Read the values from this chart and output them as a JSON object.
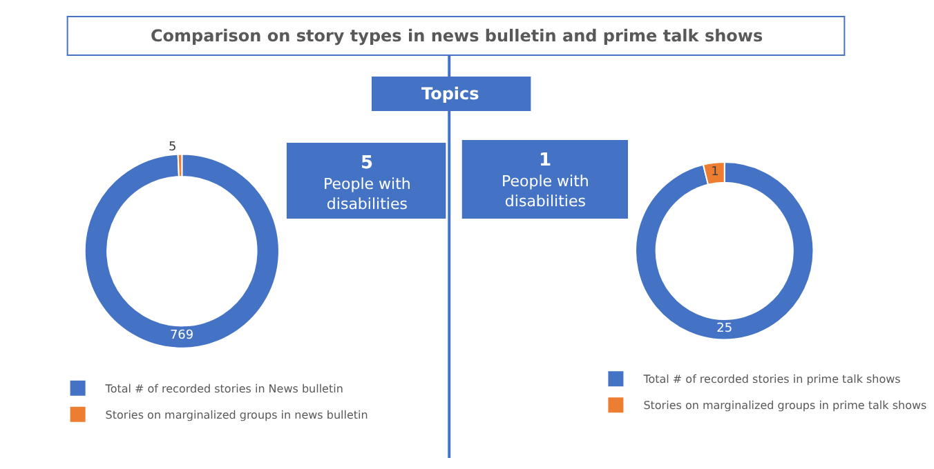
{
  "chart_data": [
    {
      "type": "other",
      "title": "Comparison on story types in news bulletin and prime talk shows",
      "annotations": [
        "Topics",
        "5",
        "People with disabilities",
        "1",
        "People with disabilities"
      ]
    },
    {
      "type": "donut",
      "categories": [
        "Total # of recorded stories in News bulletin",
        "Stories on marginalized groups in news bulletin"
      ],
      "values": [
        769,
        5
      ],
      "colors": [
        "#4472c4",
        "#ed7d31"
      ],
      "data_labels": true,
      "legend": "bottom"
    },
    {
      "type": "donut",
      "categories": [
        "Total # of recorded stories in prime talk shows",
        "Stories on marginalized groups in prime talk shows"
      ],
      "values": [
        25,
        1
      ],
      "colors": [
        "#4472c4",
        "#ed7d31"
      ],
      "data_labels": true,
      "legend": "bottom"
    }
  ]
}
